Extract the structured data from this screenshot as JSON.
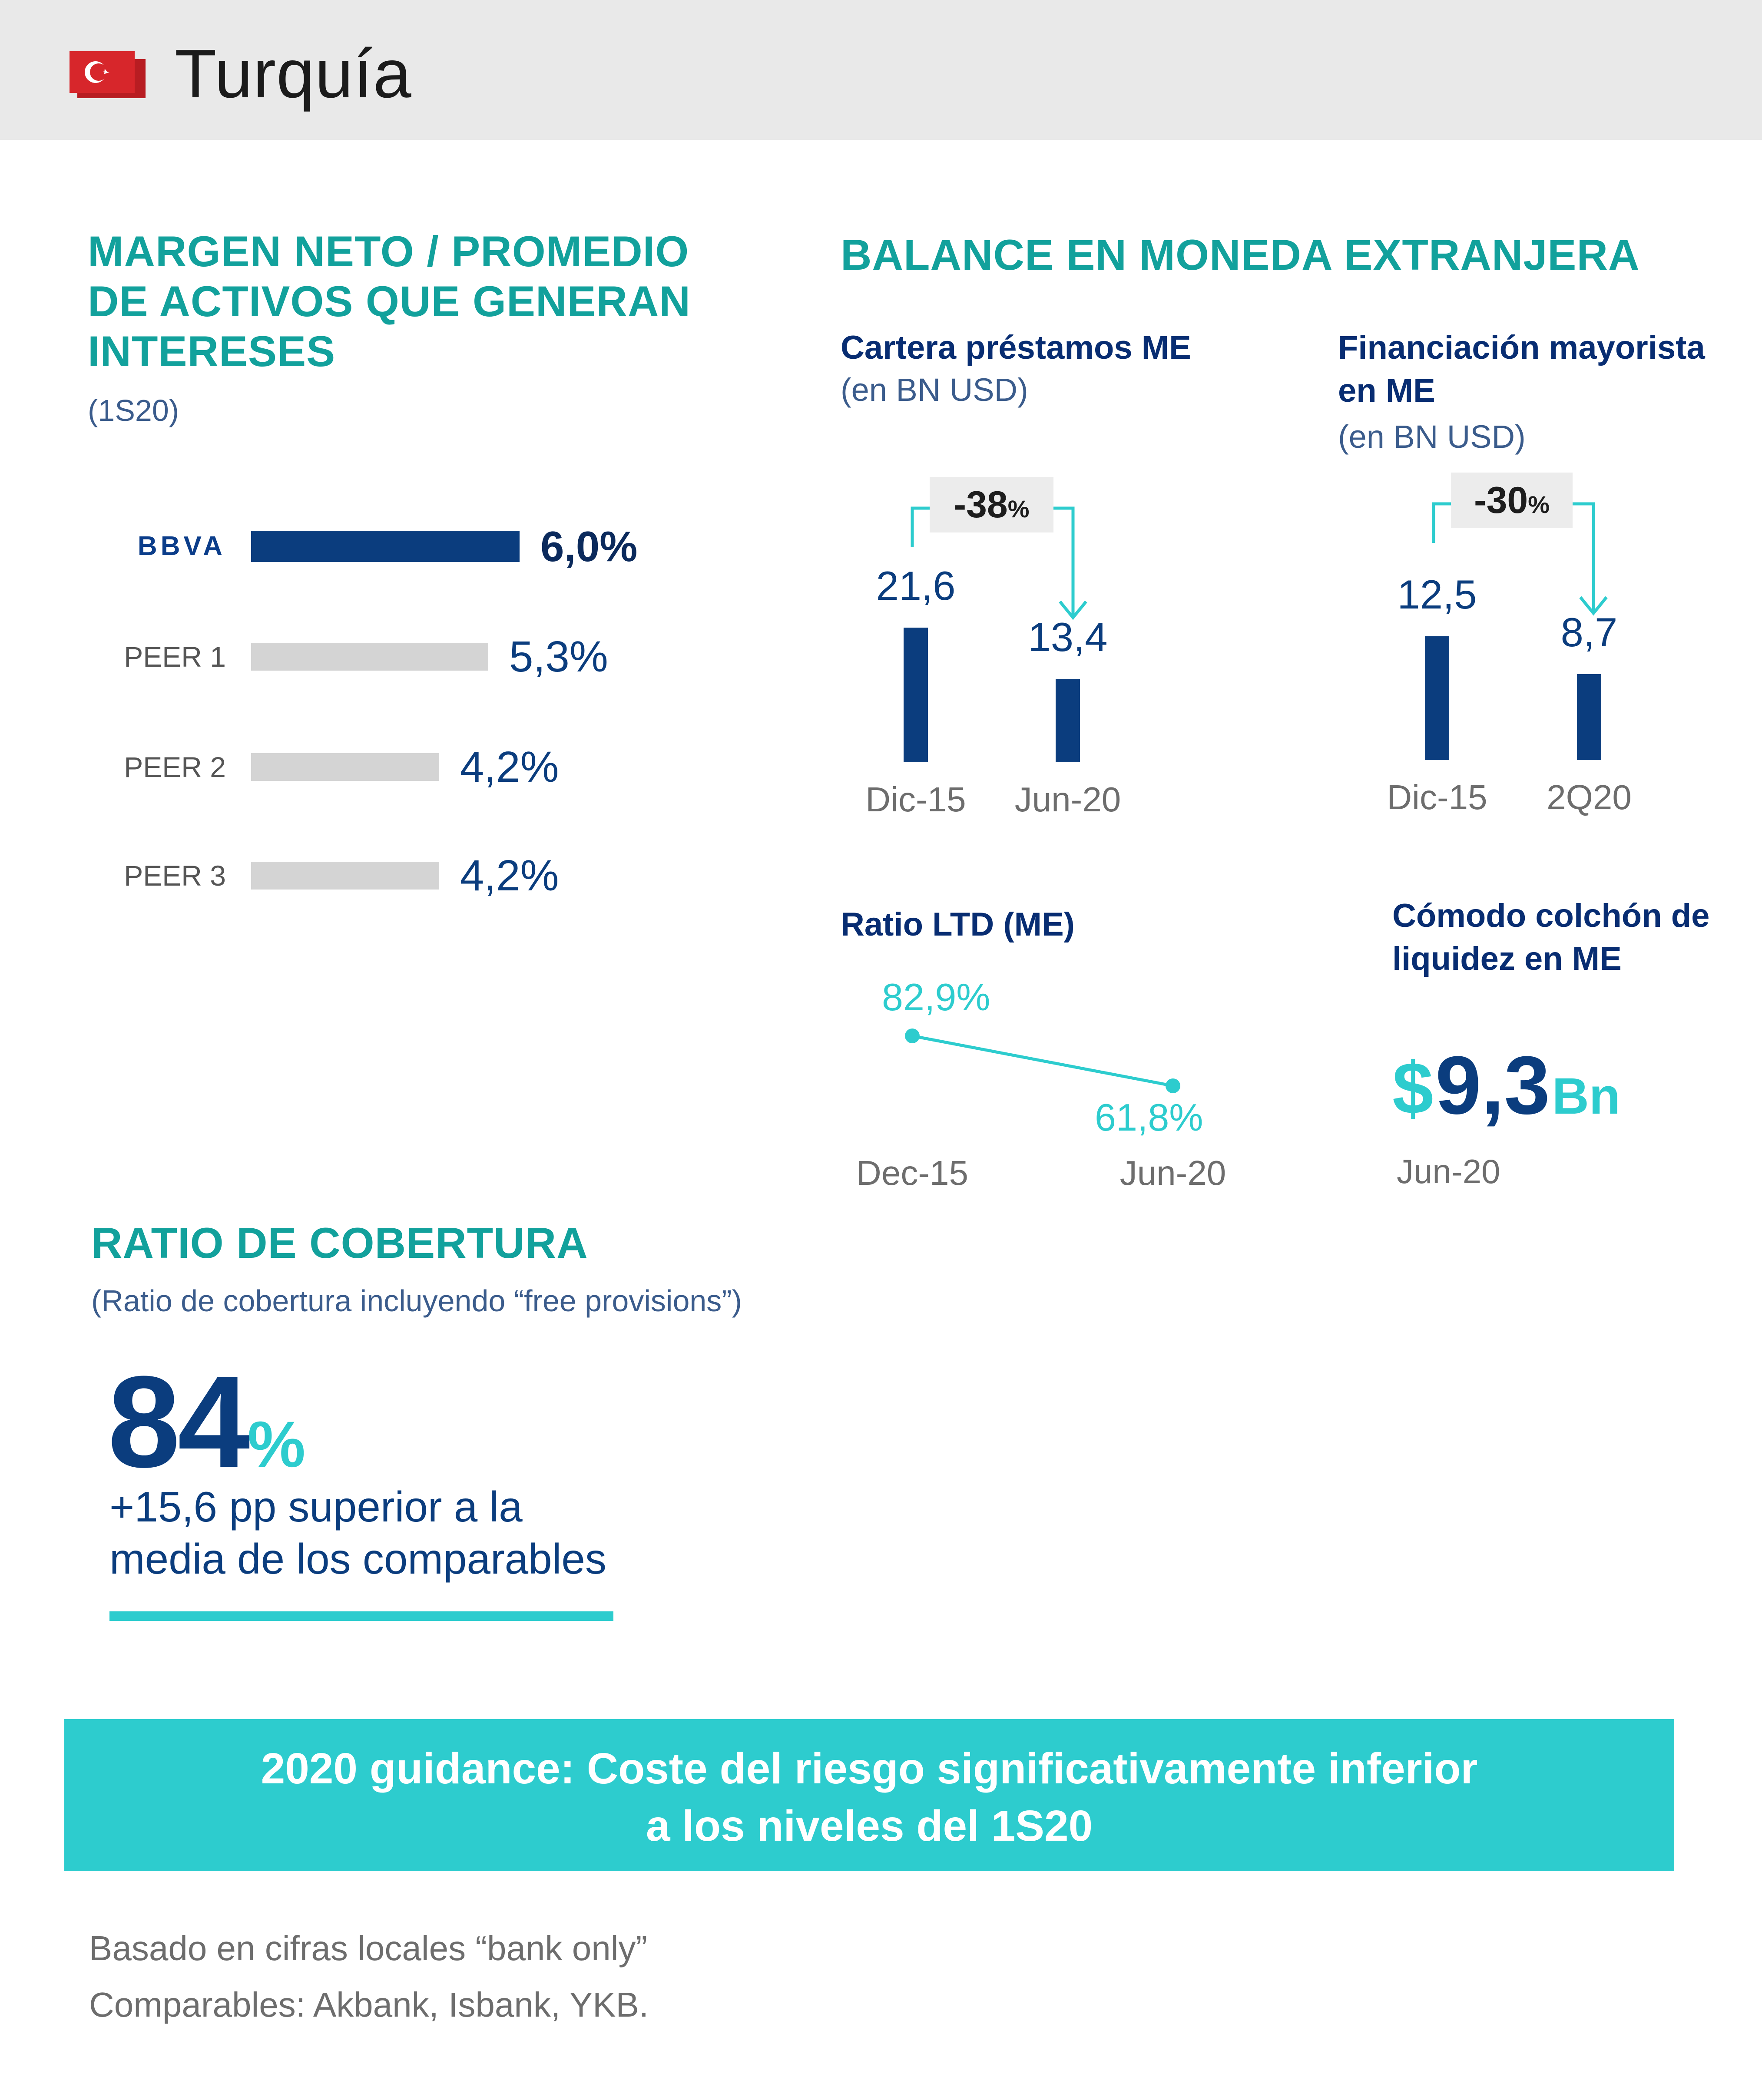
{
  "header": {
    "title": "Turquía",
    "flag_icon": "turkey-flag-icon",
    "flag_color": "#d7262b"
  },
  "nim": {
    "title_lines": [
      "MARGEN NETO / PROMEDIO",
      "DE ACTIVOS QUE GENERAN",
      "INTERESES"
    ],
    "period": "(1S20)"
  },
  "fx_balance": {
    "title": "BALANCE EN MONEDA EXTRANJERA",
    "loans": {
      "title": "Cartera préstamos ME",
      "unit": "(en BN USD)",
      "change": "-38",
      "change_unit": "%"
    },
    "wholesale": {
      "title_lines": [
        "Financiación mayorista",
        "en ME"
      ],
      "unit": "(en BN USD)",
      "change": "-30",
      "change_unit": "%"
    },
    "ltd": {
      "title": "Ratio LTD (ME)"
    },
    "liquidity": {
      "title_lines": [
        "Cómodo colchón de",
        "liquidez en ME"
      ],
      "currency": "$",
      "value": "9,3",
      "unit": "Bn",
      "date": "Jun-20"
    }
  },
  "coverage": {
    "title": "RATIO DE COBERTURA",
    "subtitle": "(Ratio de cobertura incluyendo “free provisions”)",
    "value": "84",
    "unit": "%",
    "desc_lines": [
      "+15,6 pp superior a la",
      "media de los comparables"
    ]
  },
  "guidance": {
    "lines": [
      "2020 guidance: Coste del riesgo significativamente inferior",
      "a los niveles del 1S20"
    ]
  },
  "footnotes": [
    "Basado en cifras locales “bank only”",
    "Comparables: Akbank, Isbank, YKB."
  ],
  "colors": {
    "navy": "#0b3d7e",
    "teal": "#2dccce",
    "teal_text": "#12a19c",
    "gray_bar": "#d4d4d4"
  },
  "chart_data": [
    {
      "type": "bar",
      "orientation": "horizontal",
      "categories": [
        "BBVA",
        "PEER 1",
        "PEER 2",
        "PEER 3"
      ],
      "values": [
        6.0,
        5.3,
        4.2,
        4.2
      ],
      "value_labels": [
        "6,0%",
        "5,3%",
        "4,2%",
        "4,2%"
      ],
      "highlight": "BBVA"
    },
    {
      "type": "bar",
      "categories": [
        "Dic-15",
        "Jun-20"
      ],
      "values": [
        21.6,
        13.4
      ],
      "value_labels": [
        "21,6",
        "13,4"
      ]
    },
    {
      "type": "bar",
      "categories": [
        "Dic-15",
        "2Q20"
      ],
      "values": [
        12.5,
        8.7
      ],
      "value_labels": [
        "12,5",
        "8,7"
      ]
    },
    {
      "type": "line",
      "categories": [
        "Dec-15",
        "Jun-20"
      ],
      "values": [
        82.9,
        61.8
      ],
      "value_labels": [
        "82,9%",
        "61,8%"
      ]
    }
  ]
}
